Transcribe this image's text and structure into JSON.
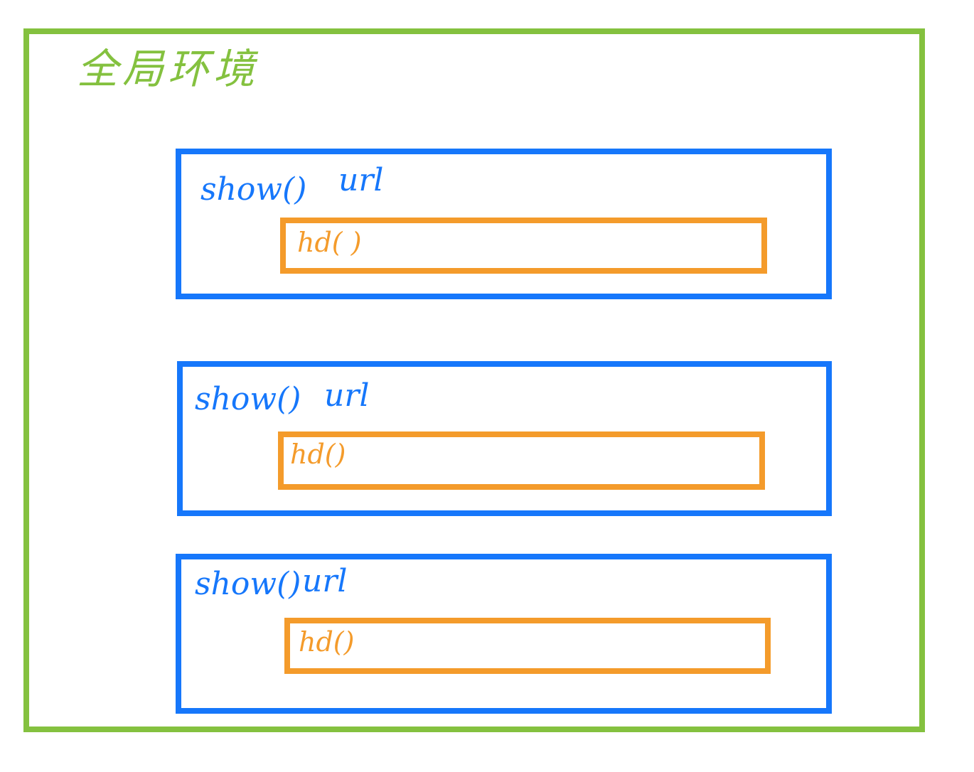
{
  "colors": {
    "global": "#84c13f",
    "scope": "#1677fb",
    "inner": "#f49b2b"
  },
  "global": {
    "label": "全局环境"
  },
  "scopes": [
    {
      "func_label": "show()",
      "var_label": "url",
      "inner_label": "hd( )"
    },
    {
      "func_label": "show()",
      "var_label": "url",
      "inner_label": "hd()"
    },
    {
      "func_label": "show()",
      "var_label": "url",
      "inner_label": "hd()"
    }
  ]
}
